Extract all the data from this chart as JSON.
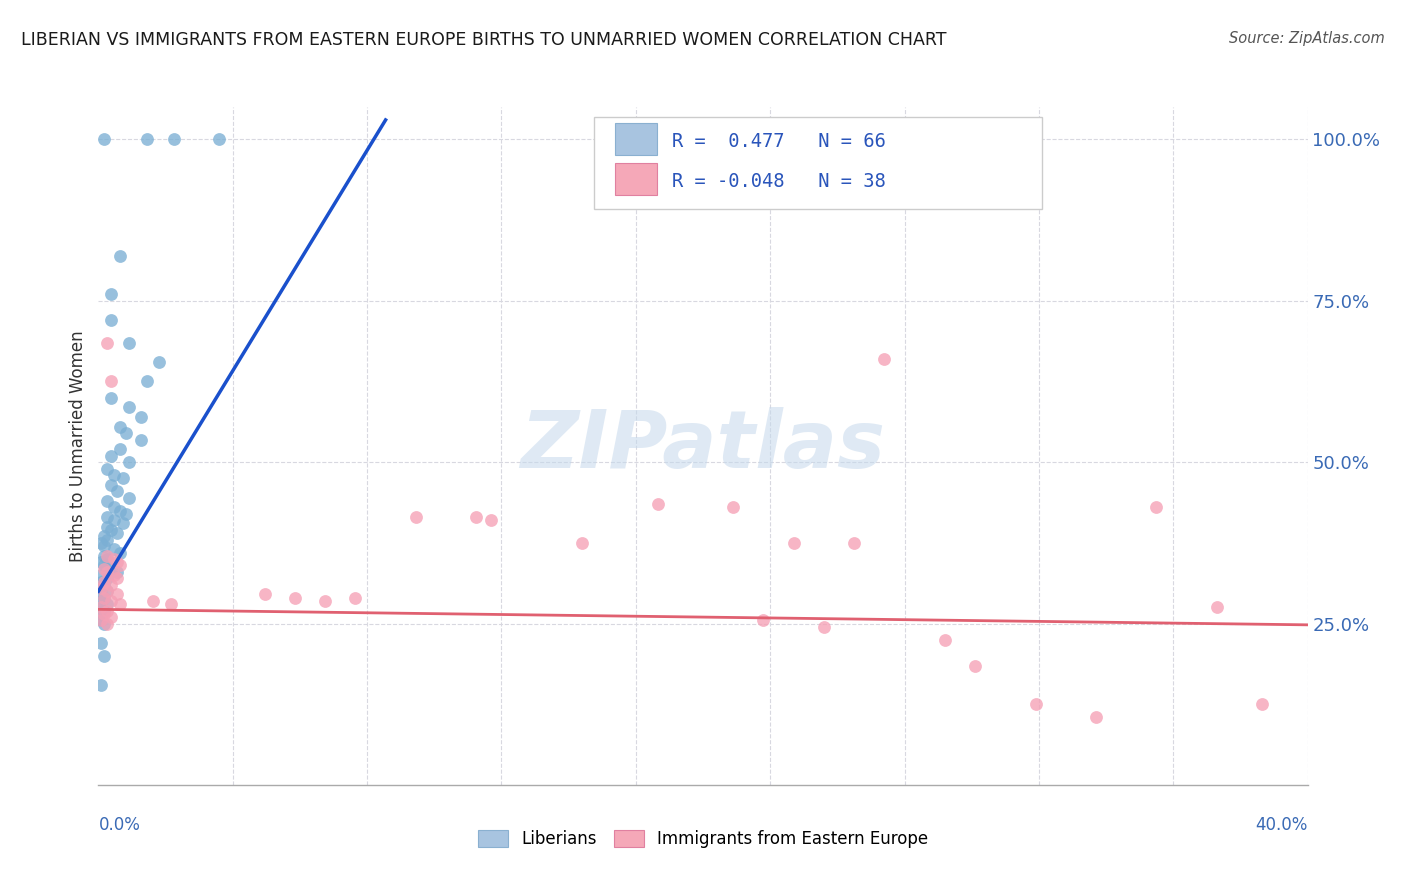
{
  "title": "LIBERIAN VS IMMIGRANTS FROM EASTERN EUROPE BIRTHS TO UNMARRIED WOMEN CORRELATION CHART",
  "source": "Source: ZipAtlas.com",
  "ylabel": "Births to Unmarried Women",
  "ytick_vals": [
    1.0,
    0.75,
    0.5,
    0.25
  ],
  "ytick_labels": [
    "100.0%",
    "75.0%",
    "50.0%",
    "25.0%"
  ],
  "xlim": [
    0.0,
    0.4
  ],
  "ylim": [
    0.0,
    1.05
  ],
  "bg_color": "#ffffff",
  "blue_color": "#7bafd4",
  "pink_color": "#f5a0b5",
  "grid_color": "#d8d8e0",
  "blue_line_x": [
    0.0,
    0.095
  ],
  "blue_line_y": [
    0.3,
    1.03
  ],
  "pink_line_x": [
    0.0,
    0.4
  ],
  "pink_line_y": [
    0.272,
    0.248
  ],
  "blue_dots": [
    [
      0.002,
      1.0
    ],
    [
      0.016,
      1.0
    ],
    [
      0.025,
      1.0
    ],
    [
      0.04,
      1.0
    ],
    [
      0.007,
      0.82
    ],
    [
      0.004,
      0.76
    ],
    [
      0.004,
      0.72
    ],
    [
      0.01,
      0.685
    ],
    [
      0.02,
      0.655
    ],
    [
      0.016,
      0.625
    ],
    [
      0.004,
      0.6
    ],
    [
      0.01,
      0.585
    ],
    [
      0.014,
      0.57
    ],
    [
      0.007,
      0.555
    ],
    [
      0.009,
      0.545
    ],
    [
      0.014,
      0.535
    ],
    [
      0.007,
      0.52
    ],
    [
      0.004,
      0.51
    ],
    [
      0.01,
      0.5
    ],
    [
      0.003,
      0.49
    ],
    [
      0.005,
      0.48
    ],
    [
      0.008,
      0.475
    ],
    [
      0.004,
      0.465
    ],
    [
      0.006,
      0.455
    ],
    [
      0.01,
      0.445
    ],
    [
      0.003,
      0.44
    ],
    [
      0.005,
      0.43
    ],
    [
      0.007,
      0.425
    ],
    [
      0.009,
      0.42
    ],
    [
      0.003,
      0.415
    ],
    [
      0.005,
      0.41
    ],
    [
      0.008,
      0.405
    ],
    [
      0.003,
      0.4
    ],
    [
      0.004,
      0.395
    ],
    [
      0.006,
      0.39
    ],
    [
      0.002,
      0.385
    ],
    [
      0.003,
      0.38
    ],
    [
      0.001,
      0.375
    ],
    [
      0.002,
      0.37
    ],
    [
      0.005,
      0.365
    ],
    [
      0.007,
      0.36
    ],
    [
      0.002,
      0.355
    ],
    [
      0.003,
      0.35
    ],
    [
      0.001,
      0.345
    ],
    [
      0.002,
      0.34
    ],
    [
      0.004,
      0.335
    ],
    [
      0.006,
      0.33
    ],
    [
      0.001,
      0.325
    ],
    [
      0.003,
      0.32
    ],
    [
      0.001,
      0.315
    ],
    [
      0.002,
      0.31
    ],
    [
      0.001,
      0.305
    ],
    [
      0.003,
      0.3
    ],
    [
      0.001,
      0.295
    ],
    [
      0.002,
      0.29
    ],
    [
      0.001,
      0.285
    ],
    [
      0.003,
      0.28
    ],
    [
      0.001,
      0.275
    ],
    [
      0.002,
      0.27
    ],
    [
      0.001,
      0.265
    ],
    [
      0.001,
      0.255
    ],
    [
      0.002,
      0.25
    ],
    [
      0.001,
      0.22
    ],
    [
      0.002,
      0.2
    ],
    [
      0.001,
      0.155
    ]
  ],
  "pink_dots": [
    [
      0.003,
      0.685
    ],
    [
      0.004,
      0.625
    ],
    [
      0.003,
      0.355
    ],
    [
      0.005,
      0.35
    ],
    [
      0.006,
      0.345
    ],
    [
      0.007,
      0.34
    ],
    [
      0.002,
      0.335
    ],
    [
      0.003,
      0.33
    ],
    [
      0.005,
      0.325
    ],
    [
      0.006,
      0.32
    ],
    [
      0.002,
      0.315
    ],
    [
      0.004,
      0.31
    ],
    [
      0.001,
      0.305
    ],
    [
      0.003,
      0.3
    ],
    [
      0.006,
      0.295
    ],
    [
      0.002,
      0.29
    ],
    [
      0.004,
      0.285
    ],
    [
      0.007,
      0.28
    ],
    [
      0.001,
      0.275
    ],
    [
      0.003,
      0.27
    ],
    [
      0.002,
      0.265
    ],
    [
      0.004,
      0.26
    ],
    [
      0.001,
      0.255
    ],
    [
      0.003,
      0.25
    ],
    [
      0.018,
      0.285
    ],
    [
      0.024,
      0.28
    ],
    [
      0.055,
      0.295
    ],
    [
      0.065,
      0.29
    ],
    [
      0.075,
      0.285
    ],
    [
      0.085,
      0.29
    ],
    [
      0.105,
      0.415
    ],
    [
      0.125,
      0.415
    ],
    [
      0.13,
      0.41
    ],
    [
      0.16,
      0.375
    ],
    [
      0.185,
      0.435
    ],
    [
      0.21,
      0.43
    ],
    [
      0.23,
      0.375
    ],
    [
      0.25,
      0.375
    ],
    [
      0.22,
      0.255
    ],
    [
      0.24,
      0.245
    ],
    [
      0.28,
      0.225
    ],
    [
      0.29,
      0.185
    ],
    [
      0.31,
      0.125
    ],
    [
      0.33,
      0.105
    ],
    [
      0.35,
      0.43
    ],
    [
      0.385,
      0.125
    ],
    [
      0.26,
      0.66
    ],
    [
      0.37,
      0.275
    ]
  ],
  "watermark_text": "ZIPatlas",
  "watermark_color": "#c5d8ec",
  "watermark_alpha": 0.55
}
